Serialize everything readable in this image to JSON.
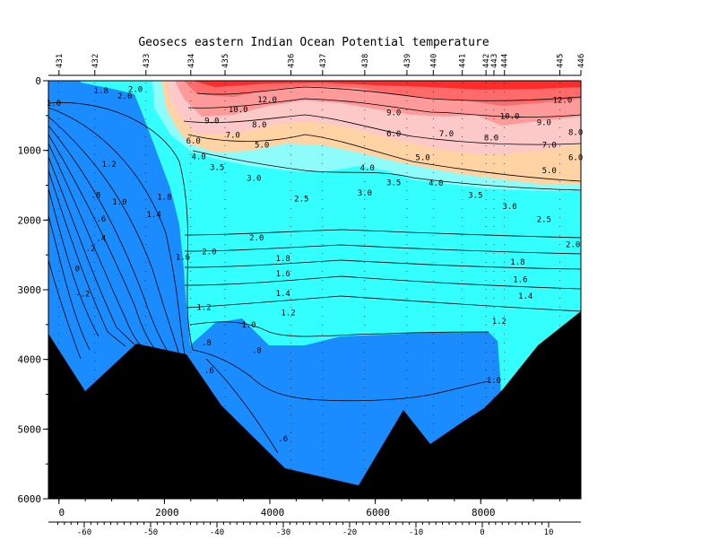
{
  "chart_data": {
    "type": "contour",
    "title": "Geosecs eastern Indian Ocean Potential temperature",
    "xlabel": "",
    "ylabel": "",
    "xlim": [
      -200,
      9900
    ],
    "ylim": [
      6000,
      0
    ],
    "x_ticks": [
      "0",
      "2000",
      "4000",
      "6000",
      "8000"
    ],
    "x_tick_values": [
      0,
      2000,
      4000,
      6000,
      8000
    ],
    "y_ticks": [
      "0",
      "1000",
      "2000",
      "3000",
      "4000",
      "5000",
      "6000"
    ],
    "y_tick_values": [
      0,
      1000,
      2000,
      3000,
      4000,
      5000,
      6000
    ],
    "lat_ticks": [
      "-60",
      "-50",
      "-40",
      "-30",
      "-20",
      "-10",
      "0",
      "10"
    ],
    "lat_tick_values": [
      -60,
      -50,
      -40,
      -30,
      -20,
      -10,
      0,
      10
    ],
    "stations": [
      {
        "label": "431",
        "x": 0
      },
      {
        "label": "432",
        "x": 680
      },
      {
        "label": "433",
        "x": 1650
      },
      {
        "label": "434",
        "x": 2500
      },
      {
        "label": "435",
        "x": 3150
      },
      {
        "label": "436",
        "x": 4400
      },
      {
        "label": "437",
        "x": 5000
      },
      {
        "label": "438",
        "x": 5800
      },
      {
        "label": "439",
        "x": 6600
      },
      {
        "label": "440",
        "x": 7100
      },
      {
        "label": "441",
        "x": 7650
      },
      {
        "label": "442",
        "x": 8100
      },
      {
        "label": "443",
        "x": 8250
      },
      {
        "label": "444",
        "x": 8450
      },
      {
        "label": "445",
        "x": 9500
      },
      {
        "label": "446",
        "x": 9900
      }
    ],
    "contour_levels": [
      -0.2,
      0,
      0.2,
      0.4,
      0.6,
      0.8,
      1.0,
      1.2,
      1.4,
      1.6,
      1.8,
      2.0,
      2.5,
      3.0,
      3.5,
      4.0,
      5.0,
      6.0,
      7.0,
      8.0,
      9.0,
      10.0,
      12.0
    ],
    "contour_labels": [
      {
        "text": "12.0",
        "x": 3950,
        "y": 270
      },
      {
        "text": "10.0",
        "x": 3400,
        "y": 410
      },
      {
        "text": "9.0",
        "x": 2900,
        "y": 570
      },
      {
        "text": "8.0",
        "x": 3800,
        "y": 630
      },
      {
        "text": "7.0",
        "x": 3300,
        "y": 780
      },
      {
        "text": "6.0",
        "x": 2550,
        "y": 860
      },
      {
        "text": "5.0",
        "x": 3850,
        "y": 920
      },
      {
        "text": "4.0",
        "x": 2650,
        "y": 1090
      },
      {
        "text": "3.5",
        "x": 3000,
        "y": 1240
      },
      {
        "text": "3.0",
        "x": 3700,
        "y": 1400
      },
      {
        "text": "2.5",
        "x": 4600,
        "y": 1690
      },
      {
        "text": "4.0",
        "x": 5850,
        "y": 1250
      },
      {
        "text": "3.5",
        "x": 6350,
        "y": 1460
      },
      {
        "text": "3.0",
        "x": 5800,
        "y": 1610
      },
      {
        "text": "9.0",
        "x": 6350,
        "y": 460
      },
      {
        "text": "6.0",
        "x": 6350,
        "y": 760
      },
      {
        "text": "5.0",
        "x": 6900,
        "y": 1100
      },
      {
        "text": "4.0",
        "x": 7150,
        "y": 1470
      },
      {
        "text": "3.5",
        "x": 7900,
        "y": 1640
      },
      {
        "text": "3.0",
        "x": 8550,
        "y": 1800
      },
      {
        "text": "2.5",
        "x": 9200,
        "y": 1990
      },
      {
        "text": "2.0",
        "x": 9750,
        "y": 2350
      },
      {
        "text": "12.0",
        "x": 9550,
        "y": 280
      },
      {
        "text": "10.0",
        "x": 8550,
        "y": 510
      },
      {
        "text": "9.0",
        "x": 9200,
        "y": 600
      },
      {
        "text": "8.0",
        "x": 9800,
        "y": 740
      },
      {
        "text": "7.0",
        "x": 7350,
        "y": 760
      },
      {
        "text": "8.0",
        "x": 8200,
        "y": 820
      },
      {
        "text": "7.0",
        "x": 9300,
        "y": 920
      },
      {
        "text": "6.0",
        "x": 9800,
        "y": 1100
      },
      {
        "text": "5.0",
        "x": 9300,
        "y": 1290
      },
      {
        "text": "2.0",
        "x": 3750,
        "y": 2250
      },
      {
        "text": "1.8",
        "x": 4250,
        "y": 2550
      },
      {
        "text": "1.6",
        "x": 4250,
        "y": 2770
      },
      {
        "text": "1.4",
        "x": 4250,
        "y": 3050
      },
      {
        "text": "1.2",
        "x": 4350,
        "y": 3330
      },
      {
        "text": "1.0",
        "x": 3600,
        "y": 3500
      },
      {
        "text": "2.0",
        "x": 2850,
        "y": 2450
      },
      {
        "text": "1.6",
        "x": 2350,
        "y": 2530
      },
      {
        "text": "1.2",
        "x": 2750,
        "y": 3250
      },
      {
        "text": "1.8",
        "x": 8700,
        "y": 2600
      },
      {
        "text": "1.6",
        "x": 8750,
        "y": 2850
      },
      {
        "text": "1.4",
        "x": 8850,
        "y": 3090
      },
      {
        "text": "1.2",
        "x": 8350,
        "y": 3450
      },
      {
        "text": "1.0",
        "x": 8250,
        "y": 4300
      },
      {
        "text": ".8",
        "x": 2800,
        "y": 3760
      },
      {
        "text": ".6",
        "x": 2850,
        "y": 4160
      },
      {
        "text": ".8",
        "x": 3750,
        "y": 3870
      },
      {
        "text": ".6",
        "x": 4250,
        "y": 5140
      },
      {
        "text": "1.8",
        "x": 2000,
        "y": 1670
      },
      {
        "text": "1.4",
        "x": 1800,
        "y": 1920
      },
      {
        "text": "1.2",
        "x": 950,
        "y": 1200
      },
      {
        "text": "1.0",
        "x": 1150,
        "y": 1740
      },
      {
        "text": ".8",
        "x": 700,
        "y": 1640
      },
      {
        "text": ".6",
        "x": 800,
        "y": 1980
      },
      {
        "text": ".4",
        "x": 800,
        "y": 2260
      },
      {
        "text": ".2",
        "x": 600,
        "y": 2410
      },
      {
        "text": "0",
        "x": 350,
        "y": 2700
      },
      {
        "text": "-.2",
        "x": 450,
        "y": 3060
      },
      {
        "text": "1.0",
        "x": -100,
        "y": 320
      },
      {
        "text": "2.0",
        "x": 1250,
        "y": 220
      },
      {
        "text": "1.8",
        "x": 800,
        "y": 140
      },
      {
        "text": "2.0",
        "x": 1450,
        "y": 120
      }
    ],
    "colors": {
      "deep_blue": "#1a8cff",
      "mid_blue": "#36a8ff",
      "cyan": "#33ffff",
      "cyan_light": "#8ffcfc",
      "peach": "#ffd3a3",
      "pink_light": "#fdc8c8",
      "pink": "#ff9a9a",
      "salmon": "#ff6a6a",
      "red": "#ff2a2a",
      "topography": "#000000"
    }
  }
}
